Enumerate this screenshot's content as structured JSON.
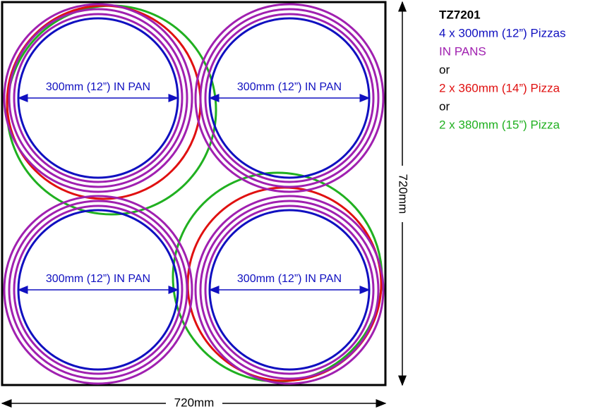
{
  "header": {
    "title": "TZ7201"
  },
  "notes": [
    "4 x 300mm (12”) Pizzas",
    "IN PANS",
    "or",
    "2 x 360mm (14”) Pizza",
    "or",
    "2 x 380mm (15”) Pizza"
  ],
  "pan_labels": [
    "300mm (12”) IN PAN",
    "300mm (12”) IN PAN",
    "300mm (12”) IN PAN",
    "300mm (12”) IN PAN"
  ],
  "dimensions": {
    "width": "720mm",
    "height": "720mm"
  }
}
